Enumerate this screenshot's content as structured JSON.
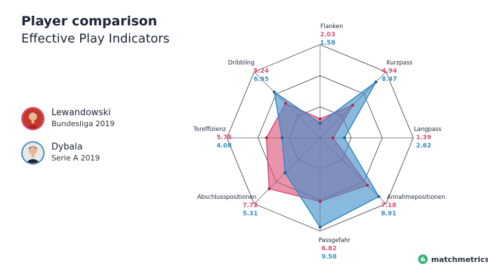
{
  "header": {
    "title": "Player comparison",
    "subtitle": "Effective Play Indicators"
  },
  "players": [
    {
      "name": "Lewandowski",
      "league": "Bundesliga 2019",
      "color": "#d94f74"
    },
    {
      "name": "Dybala",
      "league": "Serie A 2019",
      "color": "#3a8cc7"
    }
  ],
  "brand": {
    "name": "matchmetrics",
    "color": "#3bb07a"
  },
  "chart_data": {
    "type": "radar",
    "title": "Player comparison",
    "subtitle": "Effective Play Indicators",
    "rmax": 10,
    "grid_levels": 3,
    "axes": [
      "Flanken",
      "Kurzpass",
      "Langpass",
      "Annahmepositionen",
      "Passgefahr",
      "Abschlusspositionen",
      "Toreffizienz",
      "Dribbling"
    ],
    "series": [
      {
        "name": "Lewandowski",
        "color": "#d94f74",
        "values": [
          2.03,
          4.94,
          1.39,
          7.18,
          6.82,
          7.72,
          5.75,
          5.24
        ]
      },
      {
        "name": "Dybala",
        "color": "#3a8cc7",
        "values": [
          1.58,
          8.47,
          2.62,
          8.91,
          9.58,
          5.31,
          4.08,
          6.95
        ]
      }
    ],
    "value_labels": [
      [
        "2.03",
        "1.58"
      ],
      [
        "4.94",
        "8.47"
      ],
      [
        "1.39",
        "2.62"
      ],
      [
        "7.18",
        "8.91"
      ],
      [
        "6.82",
        "9.58"
      ],
      [
        "7.72",
        "5.31"
      ],
      [
        "5.75",
        "4.08"
      ],
      [
        "5.24",
        "6.95"
      ]
    ]
  }
}
